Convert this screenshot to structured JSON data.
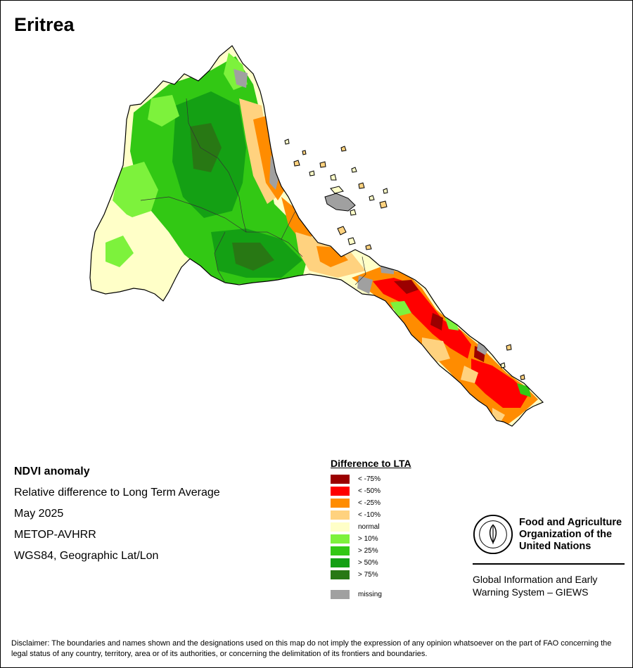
{
  "title": "Eritrea",
  "info": {
    "heading": "NDVI anomaly",
    "subtitle": "Relative difference to Long Term Average",
    "date": "May 2025",
    "sensor": "METOP-AVHRR",
    "projection": "WGS84, Geographic Lat/Lon"
  },
  "legend": {
    "title": "Difference to LTA",
    "items": [
      {
        "label": "< -75%",
        "color": "#9b0000"
      },
      {
        "label": "< -50%",
        "color": "#ff0000"
      },
      {
        "label": "< -25%",
        "color": "#ff8c00"
      },
      {
        "label": "< -10%",
        "color": "#ffd27f"
      },
      {
        "label": "normal",
        "color": "#ffffc8"
      },
      {
        "label": "> 10%",
        "color": "#7df23c"
      },
      {
        "label": "> 25%",
        "color": "#32c814"
      },
      {
        "label": "> 50%",
        "color": "#14a014"
      },
      {
        "label": "> 75%",
        "color": "#287814"
      }
    ],
    "missing": {
      "label": "missing",
      "color": "#a0a0a0"
    }
  },
  "organization": {
    "logo_text": "FAO",
    "name_lines": [
      "Food and Agriculture",
      "Organization of the",
      "United Nations"
    ],
    "program_lines": [
      "Global Information and Early",
      "Warning System – GIEWS"
    ]
  },
  "disclaimer": "Disclaimer: The boundaries and names shown and the designations used on this map do not imply the expression of any opinion whatsoever on the part of FAO concerning the legal status of any country, territory, area or of its authorities, or concerning the delimitation of its frontiers and boundaries."
}
